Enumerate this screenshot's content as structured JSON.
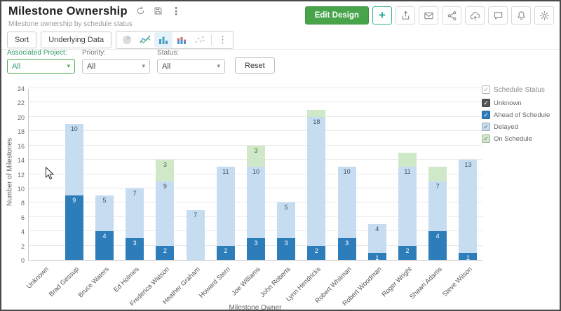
{
  "window": {
    "title": "Milestone Ownership",
    "subtitle": "Milestone ownership by schedule status"
  },
  "header": {
    "edit_design_label": "Edit Design"
  },
  "icons": {
    "plus": "+",
    "more_vertical": "⋮",
    "caret_down": "▾",
    "check": "✓"
  },
  "toolbar": {
    "sort_label": "Sort",
    "underlying_data_label": "Underlying Data"
  },
  "filters": [
    {
      "label": "Associated Project:",
      "value": "All",
      "active": true
    },
    {
      "label": "Priority:",
      "value": "All",
      "active": false
    },
    {
      "label": "Status:",
      "value": "All",
      "active": false
    }
  ],
  "reset_label": "Reset",
  "legend": {
    "title": "Schedule Status",
    "items": [
      {
        "label": "Unknown",
        "color": "#555555",
        "check": "#ffffff"
      },
      {
        "label": "Ahead of Schedule",
        "color": "#2d7dbb",
        "check": "#ffffff"
      },
      {
        "label": "Delayed",
        "color": "#c5dcf1",
        "check": "#5f6b76"
      },
      {
        "label": "On Schedule",
        "color": "#cfe9c8",
        "check": "#5f6b76"
      }
    ]
  },
  "theme": {
    "accent_green": "#47a44b",
    "teal": "#2bab92",
    "filter_green": "#4caf50"
  },
  "chart_data": {
    "type": "bar",
    "stacked": true,
    "xlabel": "Milestone Owner",
    "ylabel": "Number of Milestones",
    "ylim": [
      0,
      24
    ],
    "ytick_step": 2,
    "grid": true,
    "legend_position": "right",
    "categories": [
      "Unknown",
      "Brad Gessup",
      "Bruce Waters",
      "Ed Holmes",
      "Frederica Watson",
      "Heather Graham",
      "Howard Stern",
      "Joe Williams",
      "John Roberts",
      "Lynn Hendricks",
      "Robert Whitman",
      "Robert Woodman",
      "Roger Wright",
      "Shawn Adams",
      "Steve Wilson"
    ],
    "series": [
      {
        "name": "Ahead of Schedule",
        "color": "#2d7dbb",
        "label_color": "#ffffff",
        "label_min": 1,
        "values": [
          0,
          9,
          4,
          3,
          2,
          0,
          2,
          3,
          3,
          2,
          3,
          1,
          2,
          4,
          1
        ]
      },
      {
        "name": "Delayed",
        "color": "#c5dcf1",
        "label_color": "#3d4f60",
        "label_min": 1,
        "values": [
          0,
          10,
          5,
          7,
          9,
          7,
          11,
          10,
          5,
          18,
          10,
          4,
          11,
          7,
          13
        ]
      },
      {
        "name": "On Schedule",
        "color": "#cfe9c8",
        "label_color": "#47604a",
        "label_min": 3,
        "values": [
          0,
          0,
          0,
          0,
          3,
          0,
          0,
          3,
          0,
          1,
          0,
          0,
          2,
          2,
          0
        ]
      }
    ]
  }
}
